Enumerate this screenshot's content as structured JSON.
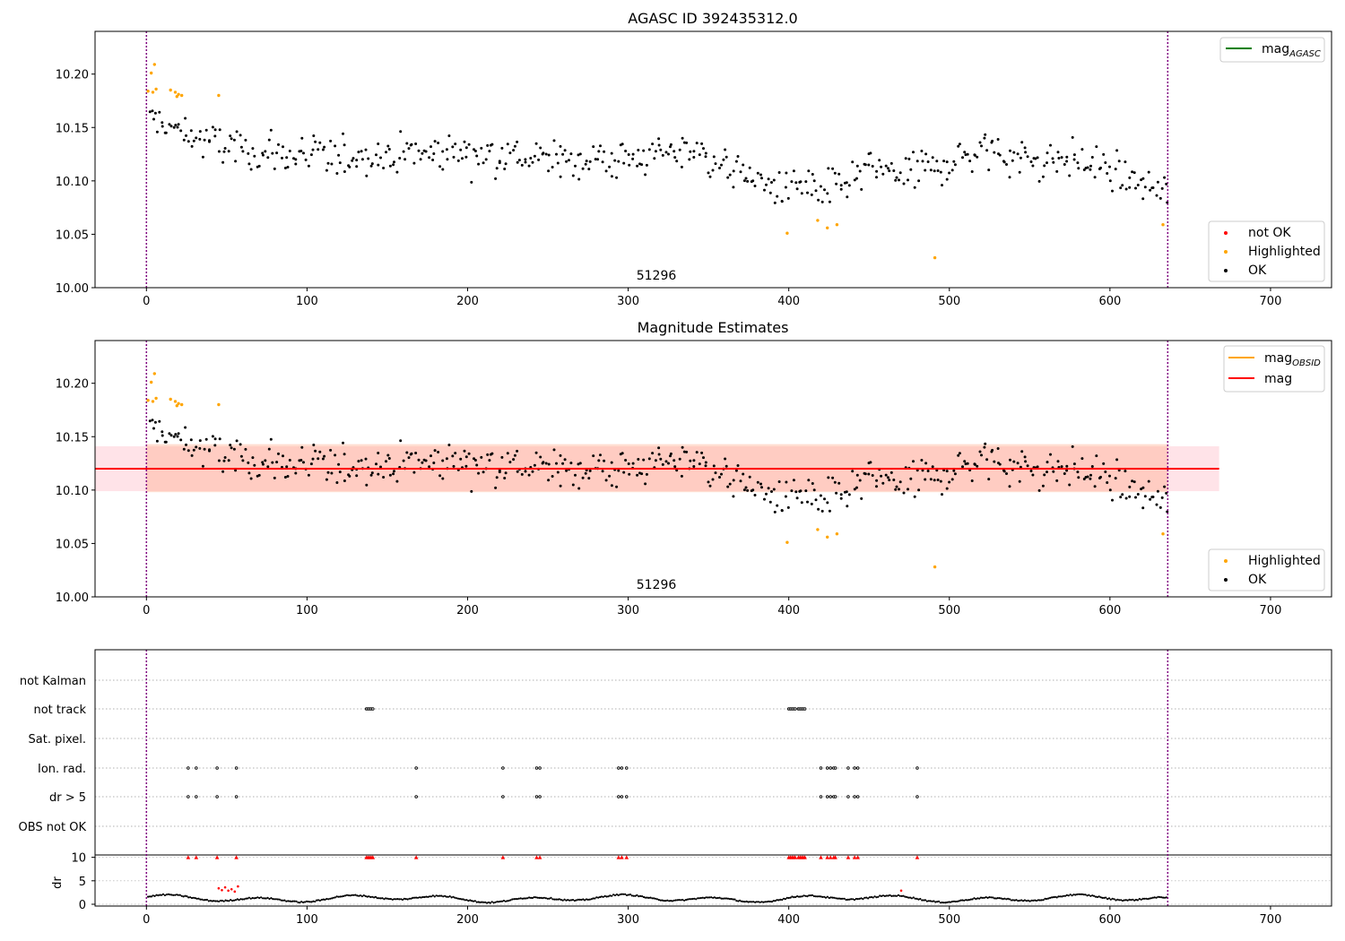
{
  "chart_data": [
    {
      "type": "scatter",
      "title": "AGASC ID 392435312.0",
      "annotation": "51296",
      "xlim": [
        -32,
        738
      ],
      "ylim": [
        10.0,
        10.24
      ],
      "xticks": [
        "0",
        "100",
        "200",
        "300",
        "400",
        "500",
        "600",
        "700"
      ],
      "yticks": [
        "10.00",
        "10.05",
        "10.10",
        "10.15",
        "10.20"
      ],
      "vlines": [
        0,
        636
      ],
      "legend_lines": [
        {
          "label": "mag",
          "sub": "AGASC",
          "color": "#008000"
        }
      ],
      "legend_points": [
        {
          "label": "not OK",
          "color": "#ff0000"
        },
        {
          "label": "Highlighted",
          "color": "#ffa500"
        },
        {
          "label": "OK",
          "color": "#000000"
        }
      ],
      "series": [
        {
          "name": "Highlighted",
          "color": "#ffa500",
          "points": [
            [
              1,
              10.184
            ],
            [
              3,
              10.201
            ],
            [
              4,
              10.183
            ],
            [
              5,
              10.209
            ],
            [
              6,
              10.186
            ],
            [
              15,
              10.185
            ],
            [
              18,
              10.183
            ],
            [
              19,
              10.179
            ],
            [
              20,
              10.181
            ],
            [
              22,
              10.18
            ],
            [
              45,
              10.18
            ],
            [
              399,
              10.051
            ],
            [
              418,
              10.063
            ],
            [
              424,
              10.056
            ],
            [
              430,
              10.059
            ],
            [
              491,
              10.028
            ],
            [
              633,
              10.059
            ]
          ]
        },
        {
          "name": "OK",
          "color": "#000000",
          "trend": [
            [
              0,
              10.16
            ],
            [
              15,
              10.15
            ],
            [
              30,
              10.14
            ],
            [
              60,
              10.128
            ],
            [
              100,
              10.122
            ],
            [
              150,
              10.125
            ],
            [
              200,
              10.128
            ],
            [
              250,
              10.12
            ],
            [
              300,
              10.12
            ],
            [
              340,
              10.13
            ],
            [
              360,
              10.115
            ],
            [
              380,
              10.1
            ],
            [
              395,
              10.092
            ],
            [
              410,
              10.098
            ],
            [
              420,
              10.085
            ],
            [
              430,
              10.095
            ],
            [
              450,
              10.11
            ],
            [
              470,
              10.108
            ],
            [
              490,
              10.112
            ],
            [
              520,
              10.13
            ],
            [
              550,
              10.12
            ],
            [
              580,
              10.12
            ],
            [
              600,
              10.11
            ],
            [
              620,
              10.095
            ],
            [
              636,
              10.09
            ]
          ],
          "n": 520,
          "spread": 0.016
        }
      ]
    },
    {
      "type": "scatter",
      "title": "Magnitude Estimates",
      "annotation": "51296",
      "xlim": [
        -32,
        738
      ],
      "ylim": [
        10.0,
        10.24
      ],
      "xticks": [
        "0",
        "100",
        "200",
        "300",
        "400",
        "500",
        "600",
        "700"
      ],
      "yticks": [
        "10.00",
        "10.05",
        "10.10",
        "10.15",
        "10.20"
      ],
      "vlines": [
        0,
        636
      ],
      "mean_mag": 10.12,
      "band_outer": [
        10.099,
        10.141
      ],
      "band_inner": [
        10.098,
        10.143
      ],
      "legend_lines": [
        {
          "label": "mag",
          "sub": "OBSID",
          "color": "#ffa500"
        },
        {
          "label": "mag",
          "sub": "",
          "color": "#ff0000"
        }
      ],
      "legend_points": [
        {
          "label": "Highlighted",
          "color": "#ffa500"
        },
        {
          "label": "OK",
          "color": "#000000"
        }
      ]
    },
    {
      "type": "scatter",
      "title": "",
      "xlim": [
        -32,
        738
      ],
      "xticks": [
        "0",
        "100",
        "200",
        "300",
        "400",
        "500",
        "600",
        "700"
      ],
      "vlines": [
        0,
        636
      ],
      "flag_rows": [
        "not Kalman",
        "not track",
        "Sat. pixel.",
        "Ion. rad.",
        "dr > 5",
        "OBS not OK"
      ],
      "flag_points": {
        "not track": [
          137,
          138,
          139,
          140,
          141,
          400,
          401,
          402,
          403,
          404,
          406,
          407,
          408,
          409,
          410
        ],
        "Ion. rad.": [
          26,
          31,
          44,
          56,
          168,
          222,
          243,
          245,
          294,
          296,
          299,
          420,
          424,
          426,
          428,
          429,
          437,
          441,
          443,
          480
        ],
        "dr > 5": [
          26,
          31,
          44,
          56,
          168,
          222,
          243,
          245,
          294,
          296,
          299,
          420,
          424,
          426,
          428,
          429,
          437,
          441,
          443,
          480
        ]
      },
      "dr_ylabel": "dr",
      "dr_yticks": [
        "0",
        "5",
        "10"
      ],
      "dr_ylim": [
        0,
        10.5
      ],
      "dr_flag_markers": [
        26,
        31,
        44,
        56,
        137,
        138,
        139,
        140,
        141,
        168,
        222,
        243,
        245,
        294,
        296,
        299,
        400,
        401,
        402,
        403,
        404,
        406,
        407,
        408,
        409,
        410,
        420,
        424,
        426,
        428,
        429,
        437,
        441,
        443,
        480
      ]
    }
  ]
}
